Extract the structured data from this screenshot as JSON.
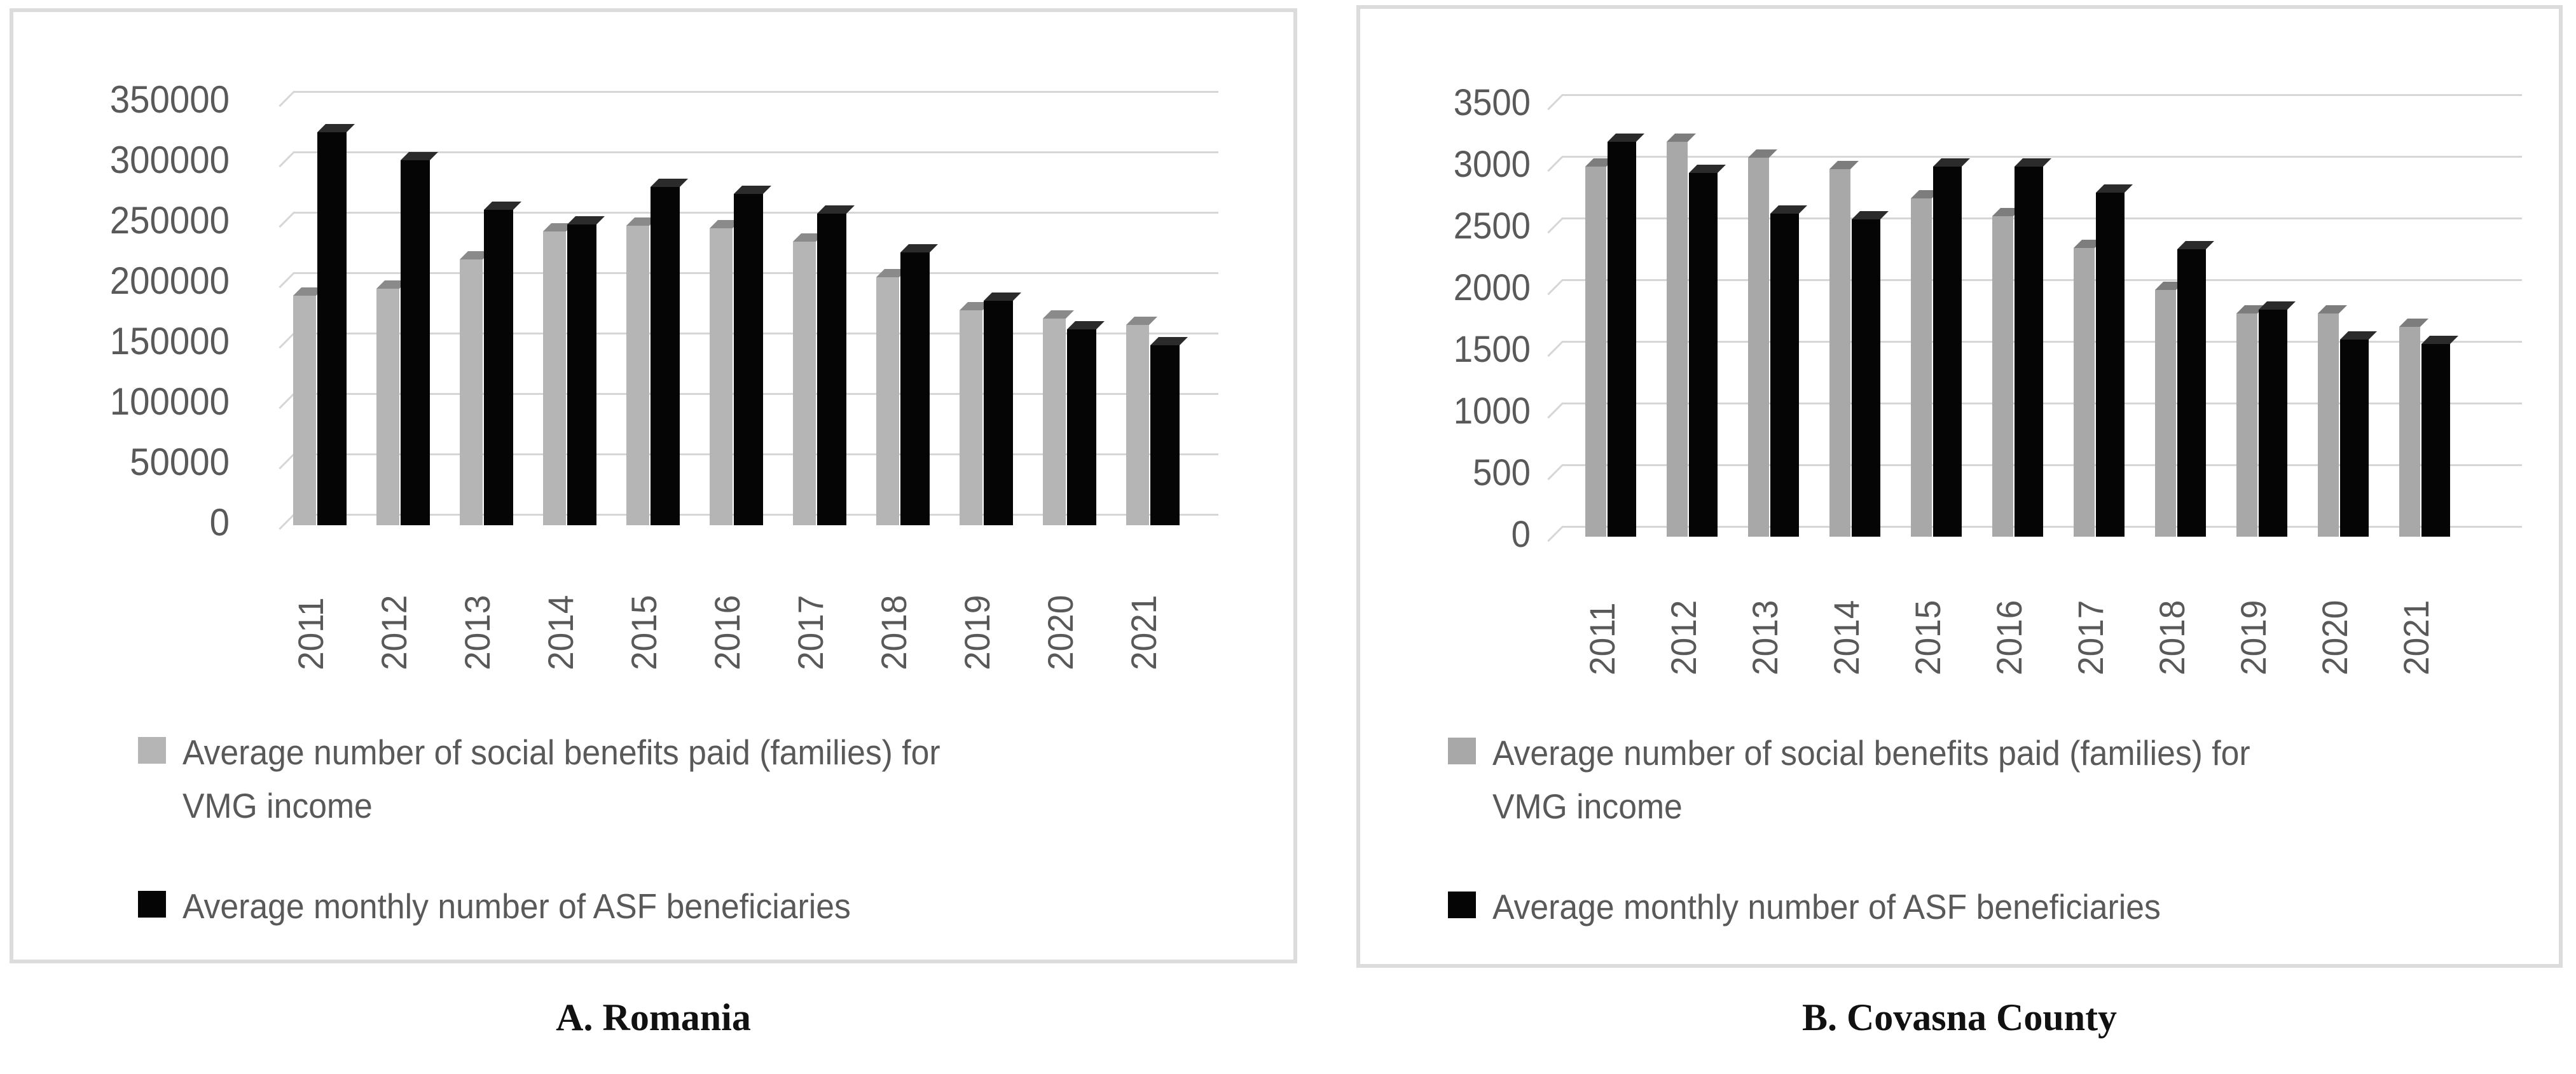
{
  "figure": {
    "legend": {
      "series1_line1": "Average number of social benefits paid (families) for",
      "series1_line2": "VMG income",
      "series2": "Average monthly number of ASF beneficiaries"
    },
    "colors": {
      "gridline": "#d6d6d6",
      "axis_text": "#595959",
      "panel_border": "#dcdcdc",
      "caption_text": "#111111"
    }
  },
  "chart_data": [
    {
      "type": "bar",
      "title": "A. Romania",
      "categories": [
        "2011",
        "2012",
        "2013",
        "2014",
        "2015",
        "2016",
        "2017",
        "2018",
        "2019",
        "2020",
        "2021"
      ],
      "series": [
        {
          "name": "Average number of social benefits paid (families) for VMG income",
          "color": "#b5b5b5",
          "top_color": "#8a8a8a",
          "values": [
            190000,
            196000,
            220000,
            243000,
            248000,
            246000,
            235000,
            205000,
            178000,
            171000,
            166000
          ]
        },
        {
          "name": "Average monthly number of ASF beneficiaries",
          "color": "#050505",
          "top_color": "#2b2b2b",
          "values": [
            325000,
            302000,
            261000,
            249000,
            280000,
            274000,
            258000,
            226000,
            186000,
            162000,
            149000
          ]
        }
      ],
      "xlabel": "",
      "ylabel": "",
      "ylim": [
        0,
        350000
      ],
      "ytick_labels": [
        "350000",
        "300000",
        "250000",
        "200000",
        "150000",
        "100000",
        "50000",
        "0"
      ],
      "grid": true,
      "style": "3d-clustered-column",
      "legend_position": "bottom"
    },
    {
      "type": "bar",
      "title": "B. Covasna County",
      "categories": [
        "2011",
        "2012",
        "2013",
        "2014",
        "2015",
        "2016",
        "2017",
        "2018",
        "2019",
        "2020",
        "2021"
      ],
      "series": [
        {
          "name": "Average number of social benefits paid (families) for VMG income",
          "color": "#a8a8a8",
          "top_color": "#7d7d7d",
          "values": [
            3000,
            3200,
            3070,
            2980,
            2740,
            2600,
            2340,
            2000,
            1810,
            1810,
            1700
          ]
        },
        {
          "name": "Average monthly number of ASF beneficiaries",
          "color": "#050505",
          "top_color": "#2b2b2b",
          "values": [
            3200,
            2950,
            2620,
            2570,
            3000,
            3000,
            2790,
            2330,
            1840,
            1600,
            1560
          ]
        }
      ],
      "xlabel": "",
      "ylabel": "",
      "ylim": [
        0,
        3500
      ],
      "ytick_labels": [
        "3500",
        "3000",
        "2500",
        "2000",
        "1500",
        "1000",
        "500",
        "0"
      ],
      "grid": true,
      "style": "3d-clustered-column",
      "legend_position": "bottom"
    }
  ]
}
